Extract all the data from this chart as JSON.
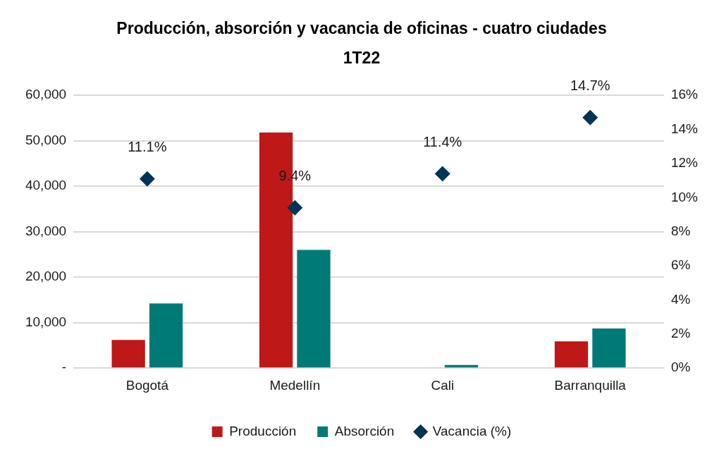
{
  "chart_data": {
    "type": "bar",
    "title": "Producción, absorción y vacancia de oficinas - cuatro ciudades",
    "subtitle": "1T22",
    "categories": [
      "Bogotá",
      "Medellín",
      "Cali",
      "Barranquilla"
    ],
    "series": [
      {
        "name": "Producción",
        "color": "#be1819",
        "values": [
          6200,
          51800,
          0,
          5900
        ]
      },
      {
        "name": "Absorción",
        "color": "#007a76",
        "values": [
          14200,
          26000,
          700,
          8700
        ]
      },
      {
        "name": "Vacancia (%)",
        "type": "scatter",
        "color": "#003457",
        "axis": "y2",
        "marker": "diamond",
        "values": [
          11.1,
          9.4,
          11.4,
          14.7
        ],
        "value_labels": [
          "11.1%",
          "9.4%",
          "11.4%",
          "14.7%"
        ]
      }
    ],
    "ylim": [
      0,
      60000
    ],
    "yticks": [
      {
        "value": 0,
        "label": "-"
      },
      {
        "value": 10000,
        "label": "10,000"
      },
      {
        "value": 20000,
        "label": "20,000"
      },
      {
        "value": 30000,
        "label": "30,000"
      },
      {
        "value": 40000,
        "label": "40,000"
      },
      {
        "value": 50000,
        "label": "50,000"
      },
      {
        "value": 60000,
        "label": "60,000"
      }
    ],
    "y2lim": [
      0,
      16
    ],
    "y2ticks": [
      {
        "value": 0,
        "label": "0%"
      },
      {
        "value": 2,
        "label": "2%"
      },
      {
        "value": 4,
        "label": "4%"
      },
      {
        "value": 6,
        "label": "6%"
      },
      {
        "value": 8,
        "label": "8%"
      },
      {
        "value": 10,
        "label": "10%"
      },
      {
        "value": 12,
        "label": "12%"
      },
      {
        "value": 14,
        "label": "14%"
      },
      {
        "value": 16,
        "label": "16%"
      }
    ],
    "grid": "y",
    "legend": "bottom"
  }
}
